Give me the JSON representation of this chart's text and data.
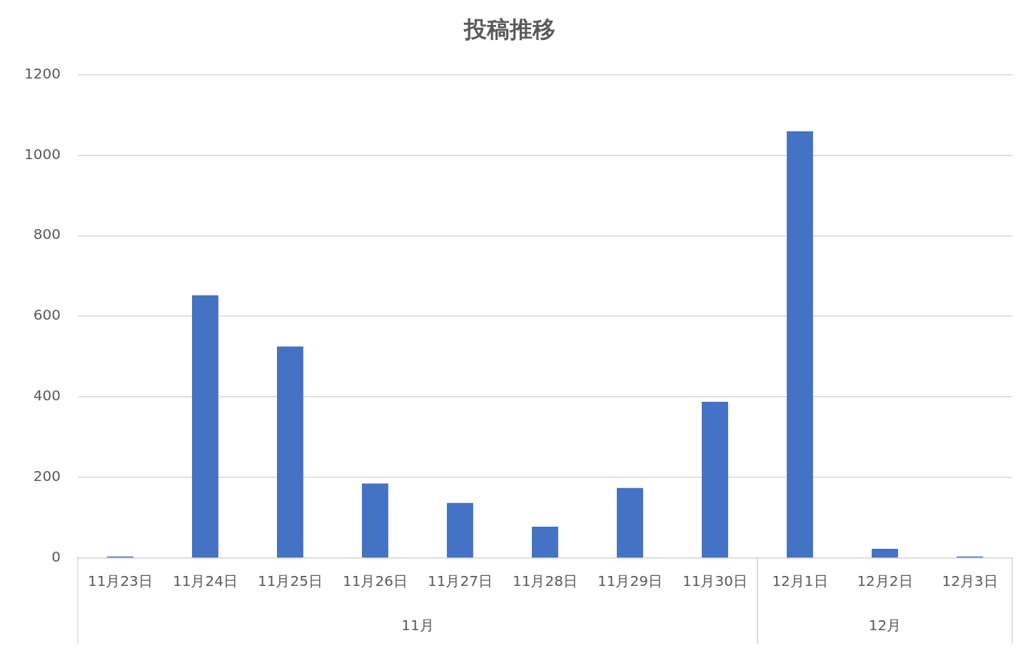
{
  "chart_data": {
    "type": "bar",
    "title": "投稿推移",
    "x": [
      "--11-23",
      "--11-24",
      "--11-25",
      "--11-26",
      "--11-27",
      "--11-28",
      "--11-29",
      "--11-30",
      "--12-01",
      "--12-02",
      "--12-03"
    ],
    "xlim": [
      "--11-22T12:00",
      "--12-03T12:00"
    ],
    "xticks": [
      {
        "value": "--11-23",
        "label": "11月23日"
      },
      {
        "value": "--11-24",
        "label": "11月24日"
      },
      {
        "value": "--11-25",
        "label": "11月25日"
      },
      {
        "value": "--11-26",
        "label": "11月26日"
      },
      {
        "value": "--11-27",
        "label": "11月27日"
      },
      {
        "value": "--11-28",
        "label": "11月28日"
      },
      {
        "value": "--11-29",
        "label": "11月29日"
      },
      {
        "value": "--11-30",
        "label": "11月30日"
      },
      {
        "value": "--12-01",
        "label": "12月1日"
      },
      {
        "value": "--12-02",
        "label": "12月2日"
      },
      {
        "value": "--12-03",
        "label": "12月3日"
      }
    ],
    "values": [
      4,
      652,
      525,
      185,
      137,
      78,
      174,
      388,
      1059,
      23,
      4
    ],
    "color": "#4472c4",
    "ylim": [
      0,
      1200
    ],
    "yticks": [
      0,
      200,
      400,
      600,
      800,
      1000,
      1200
    ],
    "grid": "y",
    "legend": false,
    "annotations": [
      "11月",
      "12月"
    ]
  }
}
